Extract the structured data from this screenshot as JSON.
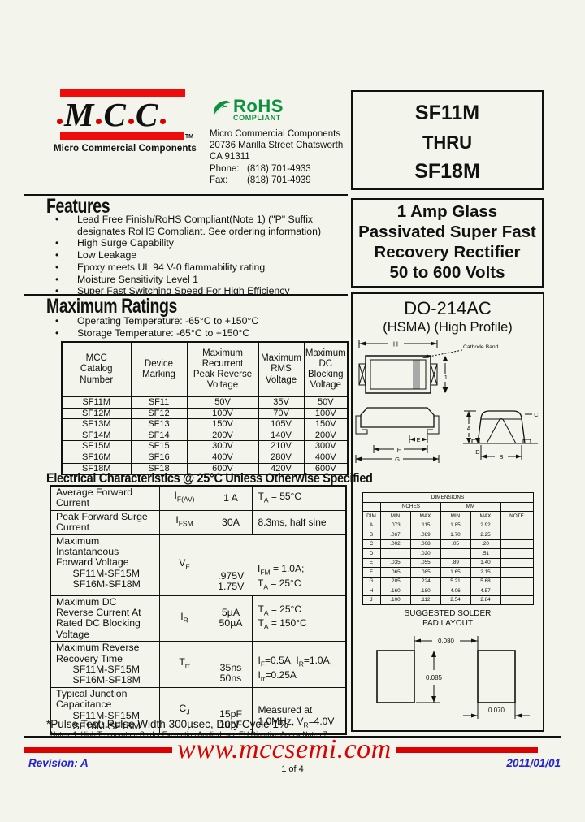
{
  "colors": {
    "logo_red": "#ee0c0c",
    "rohs_green": "#0c9140",
    "footer_red": "#dd0000",
    "footer_blue": "#2121d6",
    "cathode_gray": "#a9a9a9",
    "page_bg": "#f3f4ec"
  },
  "header": {
    "logo": {
      "letters": [
        "M",
        "C",
        "C"
      ],
      "tm": "TM",
      "tagline": "Micro Commercial Components"
    },
    "rohs": {
      "title": "RoHS",
      "subtitle": "COMPLIANT"
    },
    "address": {
      "company": "Micro Commercial Components",
      "street": "20736 Marilla Street Chatsworth",
      "city": "CA 91311",
      "phone_label": "Phone:",
      "phone": "(818) 701-4933",
      "fax_label": "Fax:",
      "fax": "(818) 701-4939"
    },
    "part_box": {
      "line1": "SF11M",
      "line2": "THRU",
      "line3": "SF18M"
    },
    "desc_box": {
      "lines": "1 Amp Glass\nPassivated Super Fast\nRecovery Rectifier\n50 to 600 Volts"
    }
  },
  "features": {
    "heading": "Features",
    "items": [
      "Lead Free Finish/RoHS Compliant(Note 1) (\"P\" Suffix designates RoHS Compliant.  See ordering information)",
      "High Surge Capability",
      "Low Leakage",
      "Epoxy meets UL 94 V-0 flammability rating",
      "Moisture Sensitivity Level 1",
      "Super Fast Switching Speed For High Efficiency"
    ]
  },
  "maximum_ratings": {
    "heading": "Maximum Ratings",
    "bullets": [
      "Operating Temperature: -65°C to +150°C",
      "Storage Temperature: -65°C to +150°C"
    ],
    "table": {
      "headers": [
        [
          "MCC\nCatalog\nNumber",
          "Device\nMarking",
          "Maximum\nRecurrent\nPeak Reverse\nVoltage",
          "Maximum\nRMS\nVoltage",
          "Maximum\nDC\nBlocking\nVoltage"
        ]
      ],
      "rows": [
        [
          "SF11M",
          "SF11",
          "50V",
          "35V",
          "50V"
        ],
        [
          "SF12M",
          "SF12",
          "100V",
          "70V",
          "100V"
        ],
        [
          "SF13M",
          "SF13",
          "150V",
          "105V",
          "150V"
        ],
        [
          "SF14M",
          "SF14",
          "200V",
          "140V",
          "200V"
        ],
        [
          "SF15M",
          "SF15",
          "300V",
          "210V",
          "300V"
        ],
        [
          "SF16M",
          "SF16",
          "400V",
          "280V",
          "400V"
        ],
        [
          "SF18M",
          "SF18",
          "600V",
          "420V",
          "600V"
        ]
      ]
    }
  },
  "electrical": {
    "heading": "Electrical Characteristics @ 25°C Unless Otherwise Specified",
    "rows": [
      {
        "param": "Average Forward\nCurrent",
        "sym": "I",
        "sub": "F(AV)",
        "value": "1 A",
        "cond": "T~A~ = 55°C"
      },
      {
        "param": "Peak Forward Surge\nCurrent",
        "sym": "I",
        "sub": "FSM",
        "value": "30A",
        "cond": "8.3ms, half sine"
      },
      {
        "param": "Maximum\nInstantaneous\nForward Voltage\n      SF11M-SF15M\n      SF16M-SF18M",
        "sym": "V",
        "sub": "F",
        "value": ".975V\n1.75V",
        "cond": "I~FM~ = 1.0A;\nT~A~ = 25°C"
      },
      {
        "param": "Maximum DC\nReverse Current At\nRated DC Blocking\nVoltage",
        "sym": "I",
        "sub": "R",
        "value": "5µA\n50µA",
        "cond": "T~A~ = 25°C\nT~A~ = 150°C"
      },
      {
        "param": "Maximum Reverse\nRecovery Time\n      SF11M-SF15M\n      SF16M-SF18M",
        "sym": "T",
        "sub": "rr",
        "value": "35ns\n50ns",
        "cond": "I~F~=0.5A, I~R~=1.0A,\nI~rr~=0.25A"
      },
      {
        "param": "Typical Junction\nCapacitance\n      SF11M-SF15M\n      SF16M-SF18M",
        "sym": "C",
        "sub": "J",
        "value": "15pF\n10pF",
        "cond": "Measured at\n1.0MHz, V~R~=4.0V"
      }
    ],
    "footnote": "*Pulse Test: Pulse Width 300µsec, Duty Cycle 1%",
    "notes": "Notes:   1.   High Temperature Solder Exemption Applied, see EU Directive Annex Notes 7."
  },
  "package": {
    "title": "DO-214AC",
    "subtitle": "(HSMA) (High Profile)",
    "cathode_label": "Cathode Band",
    "dim_letters": {
      "a": "A",
      "b": "B",
      "c": "C",
      "d": "D",
      "e": "E",
      "f": "F",
      "g": "G",
      "h": "H",
      "j": "J"
    },
    "dimensions": {
      "title": "DIMENSIONS",
      "group_inches": "INCHES",
      "group_mm": "MM",
      "col_dim": "DIM",
      "col_min": "MIN",
      "col_max": "MAX",
      "col_note": "NOTE",
      "rows": [
        [
          "A",
          ".073",
          ".115",
          "1.85",
          "2.92",
          ""
        ],
        [
          "B",
          ".067",
          ".089",
          "1.70",
          "2.25",
          ""
        ],
        [
          "C",
          ".002",
          ".008",
          ".05",
          ".20",
          ""
        ],
        [
          "D",
          "",
          ".020",
          "",
          ".51",
          ""
        ],
        [
          "E",
          ".035",
          ".055",
          ".89",
          "1.40",
          ""
        ],
        [
          "F",
          ".065",
          ".085",
          "1.65",
          "2.15",
          ""
        ],
        [
          "G",
          ".205",
          ".224",
          "5.21",
          "5.68",
          ""
        ],
        [
          "H",
          ".160",
          ".180",
          "4.06",
          "4.57",
          ""
        ],
        [
          "J",
          ".100",
          ".112",
          "2.54",
          "2.84",
          ""
        ]
      ]
    },
    "pad_layout": {
      "title": "SUGGESTED SOLDER\nPAD LAYOUT",
      "dim_top": "0.080",
      "dim_height": "0.085",
      "dim_width": "0.070"
    }
  },
  "footer": {
    "website": "www.mccsemi.com",
    "revision": "Revision: A",
    "page_num": "1 of 4",
    "date": "2011/01/01"
  }
}
